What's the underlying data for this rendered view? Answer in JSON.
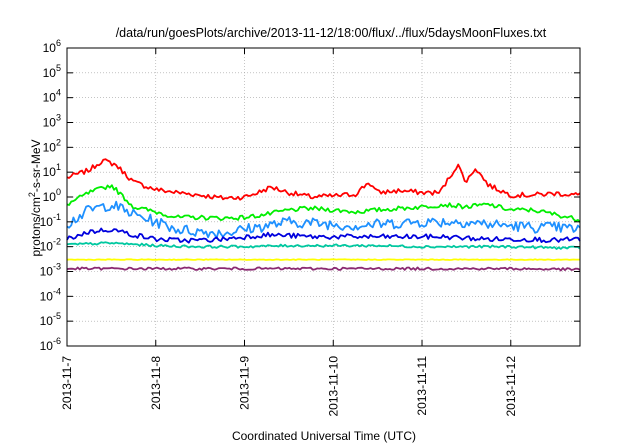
{
  "chart_data": {
    "type": "line",
    "title": "/data/run/goesPlots/archive/2013-11-12/18:00/flux/../flux/5daysMoonFluxes.txt",
    "xlabel": "Coordinated Universal Time (UTC)",
    "ylabel": {
      "pre": "protons/cm",
      "sup": "2",
      "post": "-s-sr-MeV"
    },
    "x_unit": "days since 2013-11-07 00:00 UTC",
    "xlim": [
      0,
      5.78
    ],
    "x_ticks": [
      {
        "x": 0,
        "label": "2013-11-7"
      },
      {
        "x": 1,
        "label": "2013-11-8"
      },
      {
        "x": 2,
        "label": "2013-11-9"
      },
      {
        "x": 3,
        "label": "2013-11-10"
      },
      {
        "x": 4,
        "label": "2013-11-11"
      },
      {
        "x": 5,
        "label": "2013-11-12"
      }
    ],
    "y_scale": "log",
    "ylim": [
      1e-06,
      1000000.0
    ],
    "y_ticks": [
      {
        "exp": -6,
        "label_base": "10",
        "label_exp": "-6"
      },
      {
        "exp": -5,
        "label_base": "10",
        "label_exp": "-5"
      },
      {
        "exp": -4,
        "label_base": "10",
        "label_exp": "-4"
      },
      {
        "exp": -3,
        "label_base": "10",
        "label_exp": "-3"
      },
      {
        "exp": -2,
        "label_base": "10",
        "label_exp": "-2"
      },
      {
        "exp": -1,
        "label_base": "10",
        "label_exp": "-1"
      },
      {
        "exp": 0,
        "label_base": "10",
        "label_exp": "0"
      },
      {
        "exp": 1,
        "label_base": "10",
        "label_exp": "1"
      },
      {
        "exp": 2,
        "label_base": "10",
        "label_exp": "2"
      },
      {
        "exp": 3,
        "label_base": "10",
        "label_exp": "3"
      },
      {
        "exp": 4,
        "label_base": "10",
        "label_exp": "4"
      },
      {
        "exp": 5,
        "label_base": "10",
        "label_exp": "5"
      },
      {
        "exp": 6,
        "label_base": "10",
        "label_exp": "6"
      }
    ],
    "grid": true,
    "legend": "none",
    "series": [
      {
        "color": "#ff0000",
        "x": [
          0,
          0.25,
          0.4,
          0.55,
          0.75,
          1.0,
          1.25,
          1.5,
          1.75,
          2.0,
          2.15,
          2.3,
          2.5,
          2.75,
          3.0,
          3.25,
          3.4,
          3.5,
          3.75,
          4.0,
          4.2,
          4.4,
          4.5,
          4.6,
          4.75,
          5.0,
          5.25,
          5.5,
          5.78
        ],
        "y": [
          6,
          12,
          30,
          20,
          4,
          2,
          1.5,
          1.2,
          0.9,
          1.0,
          1.5,
          2.5,
          1.5,
          1.0,
          1.1,
          1.3,
          4.0,
          1.5,
          1.8,
          1.5,
          1.5,
          20,
          4,
          15,
          3,
          1.2,
          1.2,
          1.4,
          1.2
        ]
      },
      {
        "color": "#00ee00",
        "x": [
          0,
          0.25,
          0.5,
          0.75,
          1.0,
          1.25,
          1.5,
          1.75,
          2.0,
          2.25,
          2.5,
          2.75,
          3.0,
          3.25,
          3.5,
          3.75,
          4.0,
          4.25,
          4.5,
          4.75,
          5.0,
          5.25,
          5.5,
          5.78
        ],
        "y": [
          0.5,
          1.5,
          3.0,
          0.4,
          0.25,
          0.15,
          0.15,
          0.14,
          0.15,
          0.2,
          0.3,
          0.35,
          0.3,
          0.25,
          0.3,
          0.35,
          0.4,
          0.5,
          0.4,
          0.5,
          0.3,
          0.3,
          0.2,
          0.12
        ]
      },
      {
        "color": "#1e90ff",
        "x": [
          0,
          0.25,
          0.5,
          0.75,
          1.0,
          1.25,
          1.5,
          1.75,
          2.0,
          2.25,
          2.5,
          2.75,
          3.0,
          3.25,
          3.5,
          3.75,
          4.0,
          4.25,
          4.5,
          4.75,
          5.0,
          5.25,
          5.5,
          5.78
        ],
        "y": [
          0.08,
          0.3,
          0.5,
          0.2,
          0.1,
          0.05,
          0.04,
          0.035,
          0.05,
          0.07,
          0.1,
          0.09,
          0.08,
          0.07,
          0.08,
          0.09,
          0.1,
          0.1,
          0.1,
          0.08,
          0.07,
          0.06,
          0.06,
          0.05
        ]
      },
      {
        "color": "#0000dd",
        "x": [
          0,
          0.25,
          0.5,
          0.75,
          1.0,
          1.25,
          1.5,
          1.75,
          2.0,
          2.25,
          2.5,
          2.75,
          3.0,
          3.25,
          3.5,
          3.75,
          4.0,
          4.25,
          4.5,
          4.75,
          5.0,
          5.25,
          5.5,
          5.78
        ],
        "y": [
          0.02,
          0.04,
          0.05,
          0.03,
          0.02,
          0.018,
          0.018,
          0.02,
          0.025,
          0.03,
          0.028,
          0.025,
          0.025,
          0.025,
          0.025,
          0.025,
          0.025,
          0.025,
          0.022,
          0.02,
          0.02,
          0.02,
          0.018,
          0.02
        ]
      },
      {
        "color": "#00c8a0",
        "x": [
          0,
          0.5,
          1.0,
          1.5,
          2.0,
          2.5,
          3.0,
          3.5,
          4.0,
          4.5,
          5.0,
          5.5,
          5.78
        ],
        "y": [
          0.012,
          0.014,
          0.011,
          0.01,
          0.01,
          0.011,
          0.011,
          0.011,
          0.01,
          0.01,
          0.01,
          0.009,
          0.009
        ]
      },
      {
        "color": "#ffff00",
        "x": [
          0,
          1.0,
          2.0,
          3.0,
          4.0,
          5.0,
          5.78
        ],
        "y": [
          0.003,
          0.003,
          0.003,
          0.003,
          0.003,
          0.003,
          0.003
        ]
      },
      {
        "color": "#8b2a72",
        "x": [
          0,
          1.0,
          2.0,
          3.0,
          4.0,
          5.0,
          5.78
        ],
        "y": [
          0.0013,
          0.0013,
          0.0013,
          0.0013,
          0.0013,
          0.0013,
          0.0012
        ]
      }
    ]
  }
}
